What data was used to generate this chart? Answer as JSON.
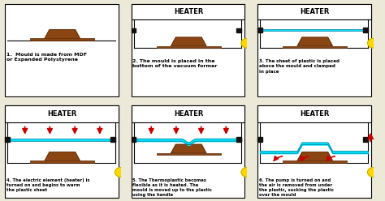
{
  "background_color": "#ece9d8",
  "panel_bg": "#ffffff",
  "border_color": "#000000",
  "heater_text": "HEATER",
  "mould_color": "#8B4513",
  "plastic_color": "#00E5FF",
  "arrow_color": "#CC0000",
  "clamp_color": "#111111",
  "yellow_color": "#FFD700",
  "captions": [
    "1.  Mould is made from MDF\nor Expanded Polystyrene",
    "2. The mould is placed in the\nbottom of the vacuum former",
    "3. The sheet of plastic is placed\nabove the mould and clamped\nin place",
    "4. The electric element (heater) is\nturned on and begins to warm\nthe plastic sheet",
    "5. The Thermoplastic becomes\nflexible as it is heated. The\nmould is moved up to the plastic\nusing the handle",
    "6. The pump is turned on and\nthe air is removed from under\nthe plastic, sucking the plastic\nover the mould"
  ],
  "figsize": [
    4.74,
    2.48
  ],
  "dpi": 100
}
